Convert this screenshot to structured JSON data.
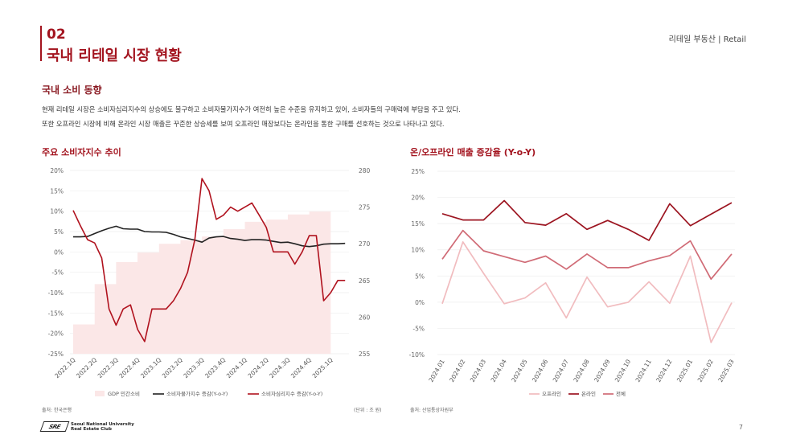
{
  "header": {
    "section_number": "02",
    "title": "국내 리테일 시장 현황",
    "top_right": "리테일 부동산 | Retail"
  },
  "subsection": {
    "heading": "국내 소비 동향",
    "lines": [
      "현재 리테일 시장은 소비자심리지수의 상승에도 불구하고 소비자물가지수가 여전히 높은 수준을 유지하고 있어, 소비자들의 구매력에 부담을 주고 있다.",
      "또한 오프라인 시장에 비해 온라인 시장 매출은 꾸준한 상승세를 보여 오프라인 매장보다는 온라인을 통한 구매를 선호하는 것으로 나타나고 있다."
    ]
  },
  "charts": {
    "left": {
      "title": "주요 소비자지수 추이",
      "source": "출처: 한국은행",
      "unit": "(단위 : 조 원)"
    },
    "right": {
      "title": "온/오프라인 매출 증감율 (Y-o-Y)",
      "source": "출처: 산업통상자원부"
    }
  },
  "footer": {
    "logo_mark": "SRE",
    "logo_line1": "Seoul National University",
    "logo_line2": "Real Estate Club",
    "page_number": "7"
  },
  "colors": {
    "accent": "#a3141f",
    "gdp_fill": "#fbe7e7",
    "cpi_line": "#222222",
    "csi_line": "#b0121e",
    "offline": "#f1bcbf",
    "online": "#9c1420",
    "total": "#d06b76"
  },
  "chart_data": [
    {
      "type": "line",
      "title": "주요 소비자지수 추이",
      "x": [
        "2022.1Q",
        "2022.2Q",
        "2022.3Q",
        "2022.4Q",
        "2023.1Q",
        "2023.2Q",
        "2023.3Q",
        "2023.4Q",
        "2024.1Q",
        "2024.2Q",
        "2024.3Q",
        "2024.4Q",
        "2025.1Q"
      ],
      "left_axis": {
        "ylim": [
          -25,
          20
        ],
        "ticks": [
          "20%",
          "15%",
          "10%",
          "5%",
          "0%",
          "-5%",
          "-10%",
          "-15%",
          "-20%",
          "-25%"
        ],
        "tick_values": [
          20,
          15,
          10,
          5,
          0,
          -5,
          -10,
          -15,
          -20,
          -25
        ]
      },
      "right_axis": {
        "ylim": [
          255,
          280
        ],
        "ticks": [
          "280",
          "275",
          "270",
          "265",
          "260",
          "255"
        ],
        "tick_values": [
          280,
          275,
          270,
          265,
          260,
          255
        ]
      },
      "series": [
        {
          "name": "GDP 민간소비",
          "type": "area",
          "axis": "right",
          "steps": [
            {
              "from": 0.0,
              "to": 1.0,
              "value": 259
            },
            {
              "from": 1.0,
              "to": 2.0,
              "value": 264.5
            },
            {
              "from": 2.0,
              "to": 3.0,
              "value": 267.5
            },
            {
              "from": 3.0,
              "to": 4.0,
              "value": 268.8
            },
            {
              "from": 4.0,
              "to": 5.0,
              "value": 270
            },
            {
              "from": 5.0,
              "to": 6.0,
              "value": 270.5
            },
            {
              "from": 6.0,
              "to": 7.0,
              "value": 271
            },
            {
              "from": 7.0,
              "to": 8.0,
              "value": 272
            },
            {
              "from": 8.0,
              "to": 9.0,
              "value": 273
            },
            {
              "from": 9.0,
              "to": 10.0,
              "value": 273.3
            },
            {
              "from": 10.0,
              "to": 11.0,
              "value": 274
            },
            {
              "from": 11.0,
              "to": 12.0,
              "value": 274.4
            }
          ]
        },
        {
          "name": "소비자물가지수 증감(Y-o-Y)",
          "axis": "left",
          "points": [
            [
              0,
              3.7
            ],
            [
              0.33,
              3.7
            ],
            [
              0.67,
              3.8
            ],
            [
              1,
              4.5
            ],
            [
              1.33,
              5.2
            ],
            [
              1.67,
              5.8
            ],
            [
              2,
              6.3
            ],
            [
              2.33,
              5.7
            ],
            [
              2.67,
              5.6
            ],
            [
              3,
              5.6
            ],
            [
              3.33,
              5.0
            ],
            [
              3.67,
              4.9
            ],
            [
              4,
              4.9
            ],
            [
              4.33,
              4.8
            ],
            [
              4.67,
              4.3
            ],
            [
              5,
              3.7
            ],
            [
              5.33,
              3.3
            ],
            [
              5.67,
              2.9
            ],
            [
              6,
              2.4
            ],
            [
              6.33,
              3.4
            ],
            [
              6.67,
              3.7
            ],
            [
              7,
              3.8
            ],
            [
              7.33,
              3.3
            ],
            [
              7.67,
              3.1
            ],
            [
              8,
              2.8
            ],
            [
              8.33,
              3.0
            ],
            [
              8.67,
              3.0
            ],
            [
              9,
              2.9
            ],
            [
              9.33,
              2.6
            ],
            [
              9.67,
              2.3
            ],
            [
              10,
              2.4
            ],
            [
              10.33,
              2.0
            ],
            [
              10.67,
              1.5
            ],
            [
              11,
              1.3
            ],
            [
              11.33,
              1.5
            ],
            [
              11.67,
              1.9
            ],
            [
              12,
              2.0
            ],
            [
              12.33,
              2.0
            ],
            [
              12.67,
              2.1
            ]
          ]
        },
        {
          "name": "소비자심리지수 증감(Y-o-Y)",
          "axis": "left",
          "points": [
            [
              0,
              10.2
            ],
            [
              0.33,
              6.5
            ],
            [
              0.67,
              3.0
            ],
            [
              1,
              2.2
            ],
            [
              1.33,
              -1.5
            ],
            [
              1.67,
              -14.0
            ],
            [
              2,
              -18.0
            ],
            [
              2.33,
              -14.0
            ],
            [
              2.67,
              -13.0
            ],
            [
              3,
              -19.0
            ],
            [
              3.33,
              -22.0
            ],
            [
              3.67,
              -14.0
            ],
            [
              4,
              -14.0
            ],
            [
              4.33,
              -14.0
            ],
            [
              4.67,
              -12.0
            ],
            [
              5,
              -9.0
            ],
            [
              5.33,
              -5.0
            ],
            [
              5.67,
              3.0
            ],
            [
              6,
              18.0
            ],
            [
              6.33,
              15.0
            ],
            [
              6.67,
              8.0
            ],
            [
              7,
              9.0
            ],
            [
              7.33,
              11.0
            ],
            [
              7.67,
              10.0
            ],
            [
              8,
              11.0
            ],
            [
              8.33,
              12.0
            ],
            [
              8.67,
              9.0
            ],
            [
              9,
              6.0
            ],
            [
              9.33,
              0.0
            ],
            [
              9.67,
              0.0
            ],
            [
              10,
              0.0
            ],
            [
              10.33,
              -3.0
            ],
            [
              10.67,
              0.0
            ],
            [
              11,
              4.0
            ],
            [
              11.33,
              4.0
            ],
            [
              11.67,
              -12.0
            ],
            [
              12,
              -10.0
            ],
            [
              12.33,
              -7.0
            ],
            [
              12.67,
              -7.0
            ]
          ]
        }
      ],
      "legend": "bottom"
    },
    {
      "type": "line",
      "title": "온/오프라인 매출 증감율 (Y-o-Y)",
      "categories": [
        "2024.01",
        "2024.02",
        "2024.03",
        "2024.04",
        "2024.05",
        "2024.06",
        "2024.07",
        "2024.08",
        "2024.09",
        "2024.10",
        "2024.11",
        "2024.12",
        "2025.01",
        "2025.02",
        "2025.03"
      ],
      "ylim": [
        -10,
        25
      ],
      "ticks": [
        "25%",
        "20%",
        "15%",
        "10%",
        "5%",
        "0%",
        "-5%",
        "-10%"
      ],
      "tick_values": [
        25,
        20,
        15,
        10,
        5,
        0,
        -5,
        -10
      ],
      "series": [
        {
          "name": "오프라인",
          "values": [
            -0.3,
            11.5,
            5.5,
            -0.3,
            0.8,
            3.7,
            -3.0,
            4.8,
            -0.9,
            0.0,
            3.9,
            -0.2,
            8.8,
            -7.7,
            -0.1
          ]
        },
        {
          "name": "온라인",
          "values": [
            16.9,
            15.7,
            15.7,
            19.4,
            15.2,
            14.7,
            16.9,
            13.9,
            15.6,
            13.9,
            11.8,
            18.8,
            14.6,
            16.8,
            19.0
          ]
        },
        {
          "name": "전체",
          "values": [
            8.2,
            13.7,
            9.8,
            8.7,
            7.6,
            8.8,
            6.3,
            9.2,
            6.6,
            6.6,
            7.9,
            8.9,
            11.7,
            4.4,
            9.2
          ]
        }
      ],
      "legend": "bottom"
    }
  ]
}
